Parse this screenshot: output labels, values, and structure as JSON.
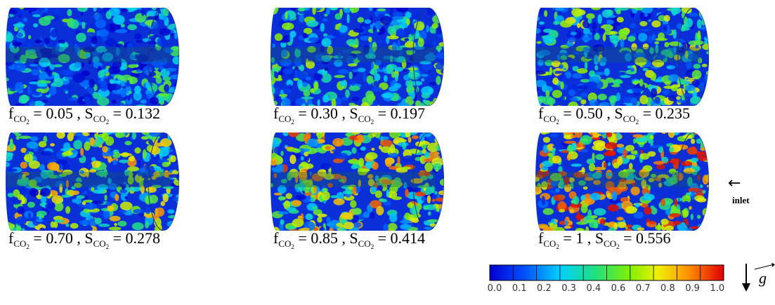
{
  "symbols": {
    "f": "f",
    "s": "S",
    "species": "CO",
    "species_index": "2",
    "equals": "=",
    "separator": ","
  },
  "panels": [
    {
      "f_value": "0.05",
      "s_value": "0.132"
    },
    {
      "f_value": "0.30",
      "s_value": "0.197"
    },
    {
      "f_value": "0.50",
      "s_value": "0.235"
    },
    {
      "f_value": "0.70",
      "s_value": "0.278"
    },
    {
      "f_value": "0.85",
      "s_value": "0.414"
    },
    {
      "f_value": "1",
      "s_value": "0.556"
    }
  ],
  "inlet_label": "inlet",
  "gravity_symbol": "g",
  "colorbar": {
    "ticks": [
      "0.0",
      "0.1",
      "0.2",
      "0.3",
      "0.4",
      "0.6",
      "0.7",
      "0.8",
      "0.9",
      "1.0"
    ]
  }
}
